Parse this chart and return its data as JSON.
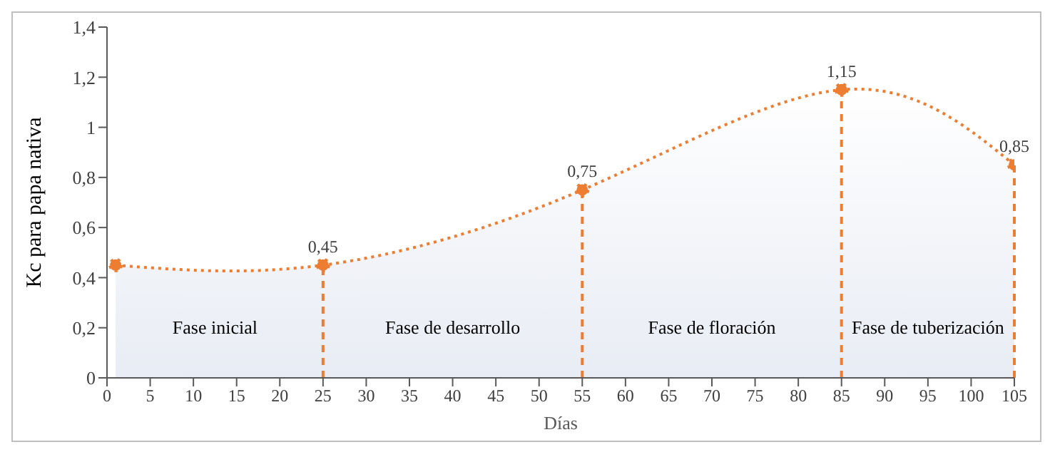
{
  "chart_data": {
    "type": "area",
    "xlabel": "Días",
    "ylabel": "Kc  para papa nativa",
    "x": [
      1,
      25,
      55,
      85,
      105
    ],
    "series": [
      {
        "color": "#ed7d31",
        "values": [
          0.45,
          0.45,
          0.75,
          1.15,
          0.85
        ],
        "value_labels": [
          null,
          "0,45",
          "0,75",
          "1,15",
          "0,85"
        ]
      }
    ],
    "xlim": [
      0,
      105
    ],
    "xticks": [
      0,
      5,
      10,
      15,
      20,
      25,
      30,
      35,
      40,
      45,
      50,
      55,
      60,
      65,
      70,
      75,
      80,
      85,
      90,
      95,
      100,
      105
    ],
    "ylim": [
      0,
      1.4
    ],
    "yticks": [
      0,
      {
        "value": 0.2,
        "label": "0,2"
      },
      {
        "value": 0.4,
        "label": "0,4"
      },
      {
        "value": 0.6,
        "label": "0,6"
      },
      {
        "value": 0.8,
        "label": "0,8"
      },
      1,
      {
        "value": 1.2,
        "label": "1,2"
      },
      {
        "value": 1.4,
        "label": "1,4"
      }
    ],
    "ref_lines": [
      {
        "axis": "x",
        "value": 25,
        "color": "#ed7d31",
        "line_style": "dashed"
      },
      {
        "axis": "x",
        "value": 55,
        "color": "#ed7d31",
        "line_style": "dashed"
      },
      {
        "axis": "x",
        "value": 85,
        "color": "#ed7d31",
        "line_style": "dashed"
      },
      {
        "axis": "x",
        "value": 105,
        "color": "#ed7d31",
        "line_style": "dashed"
      }
    ],
    "annotations": [
      "Fase inicial",
      "Fase de desarrollo",
      "Fase de floración",
      "Fase de tuberización"
    ],
    "marker": "circle",
    "line_style": "dotted",
    "grid": false
  }
}
